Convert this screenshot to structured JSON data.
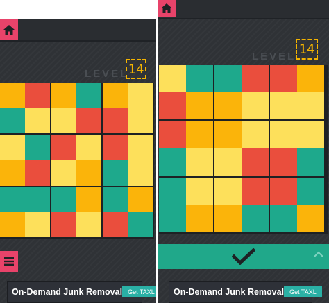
{
  "left": {
    "level_label": "LEVEL",
    "level_number": "14",
    "grid": [
      [
        "orange",
        "red",
        "orange",
        "teal",
        "orange",
        "yellow"
      ],
      [
        "teal",
        "yellow",
        "yellow",
        "red",
        "red",
        "yellow"
      ],
      [
        "yellow",
        "teal",
        "red",
        "yellow",
        "red",
        "yellow"
      ],
      [
        "orange",
        "red",
        "yellow",
        "orange",
        "teal",
        "yellow"
      ],
      [
        "teal",
        "teal",
        "teal",
        "orange",
        "teal",
        "orange"
      ],
      [
        "orange",
        "yellow",
        "red",
        "yellow",
        "red",
        "teal"
      ]
    ],
    "ad": {
      "text": "On-Demand Junk Removal",
      "button": "Get TAXL"
    }
  },
  "right": {
    "level_label": "LEVEL",
    "level_number": "14",
    "grid": [
      [
        "yellow",
        "teal",
        "teal",
        "red",
        "red",
        "orange"
      ],
      [
        "red",
        "orange",
        "orange",
        "yellow",
        "yellow",
        "yellow"
      ],
      [
        "red",
        "orange",
        "orange",
        "yellow",
        "yellow",
        "yellow"
      ],
      [
        "teal",
        "yellow",
        "yellow",
        "red",
        "red",
        "teal"
      ],
      [
        "teal",
        "yellow",
        "yellow",
        "red",
        "red",
        "teal"
      ],
      [
        "teal",
        "orange",
        "orange",
        "teal",
        "teal",
        "orange"
      ]
    ],
    "ad": {
      "text": "On-Demand Junk Removal",
      "button": "Get TAXL"
    }
  },
  "colors": {
    "red": "#ea4e3d",
    "orange": "#fbb40a",
    "yellow": "#fde05b",
    "teal": "#1ea98c",
    "accent_pink": "#e8436a"
  },
  "icons": [
    "home-icon",
    "menu-icon",
    "check-icon",
    "chevron-up-icon"
  ]
}
